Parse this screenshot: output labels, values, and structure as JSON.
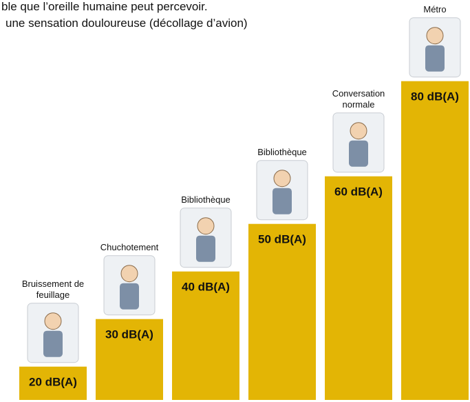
{
  "chart_data": {
    "type": "bar",
    "text_lines": [
      "ble que l’oreille humaine peut percevoir.",
      "une sensation douloureuse (décollage d’avion)"
    ],
    "categories": [
      "Bruissement de feuillage",
      "Chuchotement",
      "Bibliothèque",
      "Bibliothèque",
      "Conversation normale",
      "Métro"
    ],
    "values": [
      20,
      30,
      40,
      50,
      60,
      80
    ],
    "value_labels": [
      "20 dB(A)",
      "30 dB(A)",
      "40 dB(A)",
      "50 dB(A)",
      "60 dB(A)",
      "80 dB(A)"
    ],
    "color": "#e3b505"
  }
}
